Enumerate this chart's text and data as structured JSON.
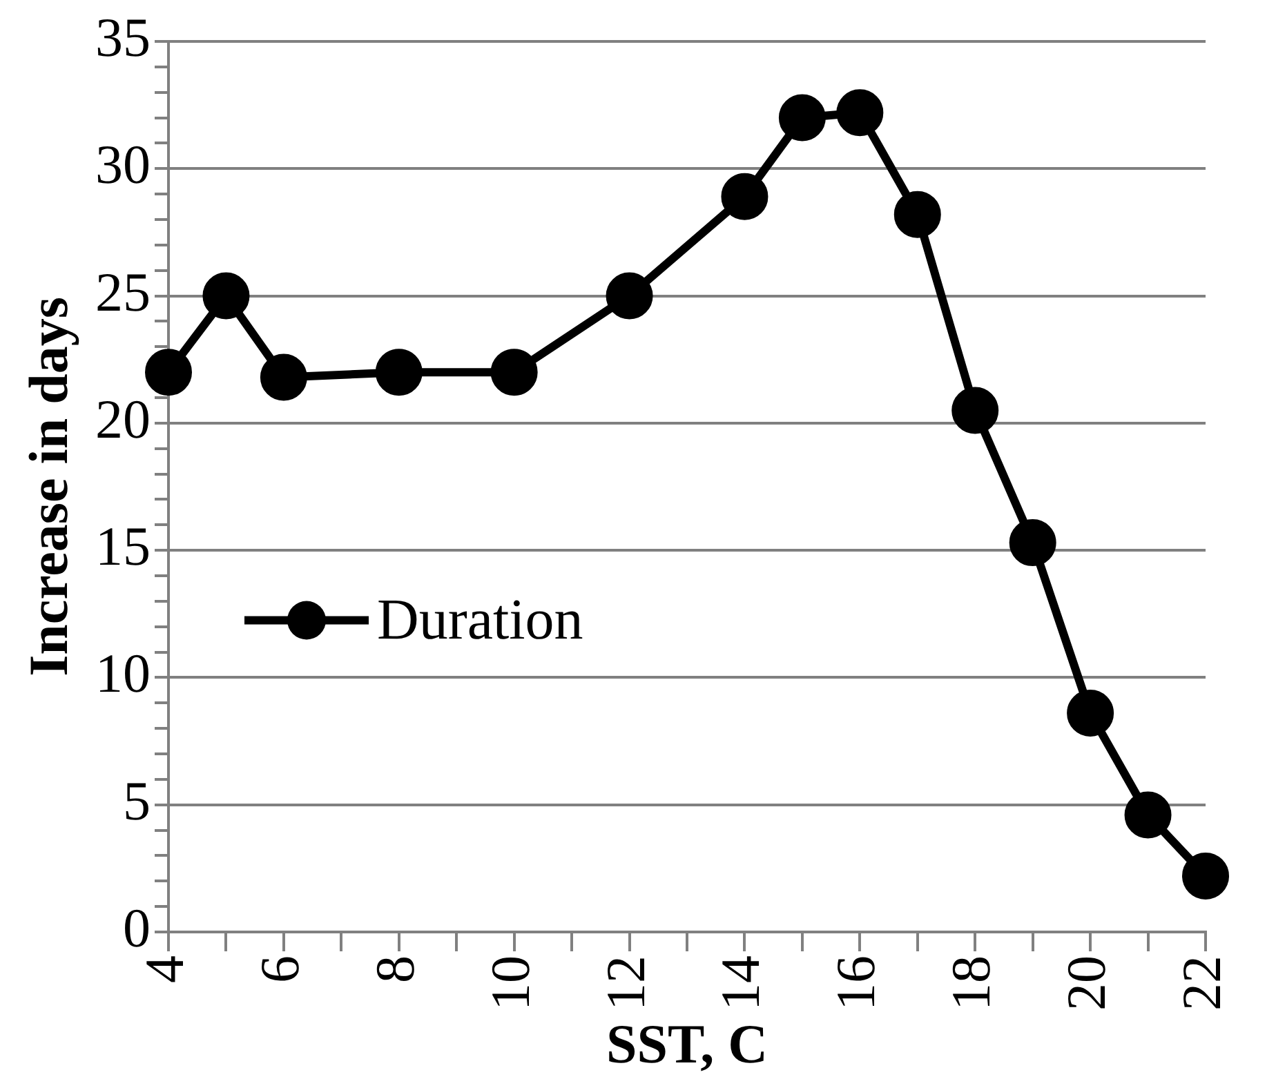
{
  "chart_data": {
    "type": "line",
    "xlabel": "SST, C",
    "ylabel": "Increase in days",
    "x": [
      4,
      5,
      6,
      8,
      10,
      12,
      14,
      15,
      16,
      17,
      18,
      19,
      20,
      21,
      22
    ],
    "series": [
      {
        "name": "Duration",
        "color": "#000000",
        "values": [
          22,
          25,
          21.8,
          22,
          22,
          25,
          28.9,
          32,
          32.2,
          28.2,
          20.5,
          15.3,
          8.6,
          4.6,
          2.2
        ]
      }
    ],
    "xlim": [
      4,
      22
    ],
    "xticks": [
      4,
      {
        "value": 5,
        "label": null
      },
      6,
      {
        "value": 7,
        "label": null
      },
      8,
      {
        "value": 9,
        "label": null
      },
      10,
      {
        "value": 11,
        "label": null
      },
      12,
      {
        "value": 13,
        "label": null
      },
      14,
      {
        "value": 15,
        "label": null
      },
      16,
      {
        "value": 17,
        "label": null
      },
      18,
      {
        "value": 19,
        "label": null
      },
      20,
      {
        "value": 21,
        "label": null
      },
      22
    ],
    "ylim": [
      0,
      35
    ],
    "yticks": [
      0,
      {
        "value": 1,
        "label": null
      },
      {
        "value": 2,
        "label": null
      },
      {
        "value": 3,
        "label": null
      },
      {
        "value": 4,
        "label": null
      },
      5,
      {
        "value": 6,
        "label": null
      },
      {
        "value": 7,
        "label": null
      },
      {
        "value": 8,
        "label": null
      },
      {
        "value": 9,
        "label": null
      },
      10,
      {
        "value": 11,
        "label": null
      },
      {
        "value": 12,
        "label": null
      },
      {
        "value": 13,
        "label": null
      },
      {
        "value": 14,
        "label": null
      },
      15,
      {
        "value": 16,
        "label": null
      },
      {
        "value": 17,
        "label": null
      },
      {
        "value": 18,
        "label": null
      },
      {
        "value": 19,
        "label": null
      },
      20,
      {
        "value": 21,
        "label": null
      },
      {
        "value": 22,
        "label": null
      },
      {
        "value": 23,
        "label": null
      },
      {
        "value": 24,
        "label": null
      },
      25,
      {
        "value": 26,
        "label": null
      },
      {
        "value": 27,
        "label": null
      },
      {
        "value": 28,
        "label": null
      },
      {
        "value": 29,
        "label": null
      },
      30,
      {
        "value": 31,
        "label": null
      },
      {
        "value": 32,
        "label": null
      },
      {
        "value": 33,
        "label": null
      },
      {
        "value": 34,
        "label": null
      },
      35
    ],
    "grid": "y",
    "legend": "left",
    "marker": "circle",
    "line_style": "solid"
  }
}
